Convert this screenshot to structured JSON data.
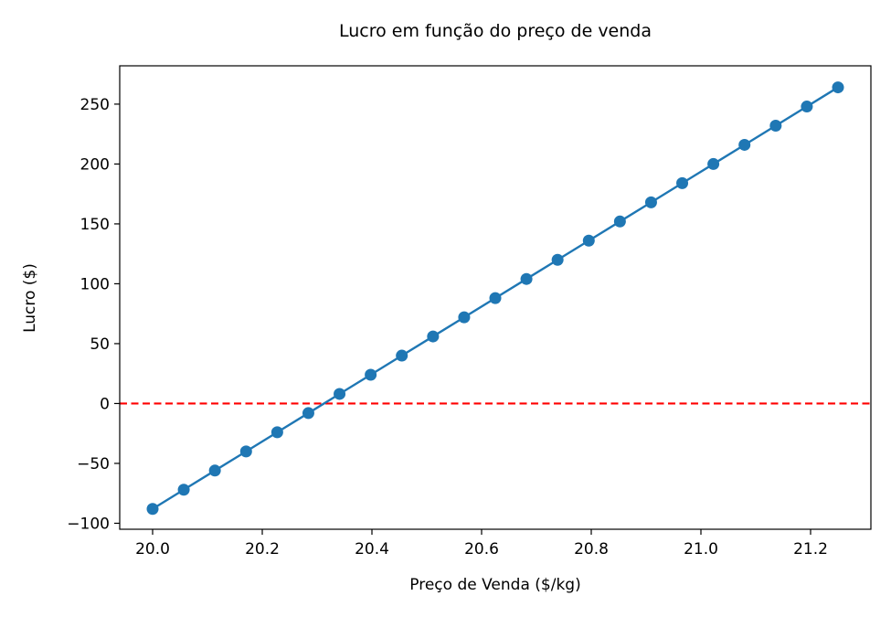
{
  "chart_data": {
    "type": "line",
    "title": "Lucro em função do preço de venda",
    "xlabel": "Preço de Venda ($/kg)",
    "ylabel": "Lucro ($)",
    "xlim": [
      19.94,
      21.31
    ],
    "ylim": [
      -105,
      282
    ],
    "xticks": [
      20.0,
      20.2,
      20.4,
      20.6,
      20.8,
      21.0,
      21.2
    ],
    "xtick_labels": [
      "20.0",
      "20.2",
      "20.4",
      "20.6",
      "20.8",
      "21.0",
      "21.2"
    ],
    "yticks": [
      -100,
      -50,
      0,
      50,
      100,
      150,
      200,
      250
    ],
    "ytick_labels": [
      "−100",
      "−50",
      "0",
      "50",
      "100",
      "150",
      "200",
      "250"
    ],
    "grid": false,
    "series": [
      {
        "color": "#1f77b4",
        "marker": "circle",
        "x": [
          20.0,
          20.0568,
          20.1136,
          20.1705,
          20.2273,
          20.2841,
          20.3409,
          20.3977,
          20.4545,
          20.5114,
          20.5682,
          20.625,
          20.6818,
          20.7386,
          20.7955,
          20.8523,
          20.9091,
          20.9659,
          21.0227,
          21.0795,
          21.1364,
          21.1932,
          21.25
        ],
        "y": [
          -88,
          -72,
          -56,
          -40,
          -24,
          -8,
          8,
          24,
          40,
          56,
          72,
          88,
          104,
          120,
          136,
          152,
          168,
          184,
          200,
          216,
          232,
          248,
          264
        ]
      }
    ],
    "reference_lines": [
      {
        "orientation": "horizontal",
        "y": 0,
        "color": "#ff0000",
        "style": "dashed"
      }
    ]
  }
}
